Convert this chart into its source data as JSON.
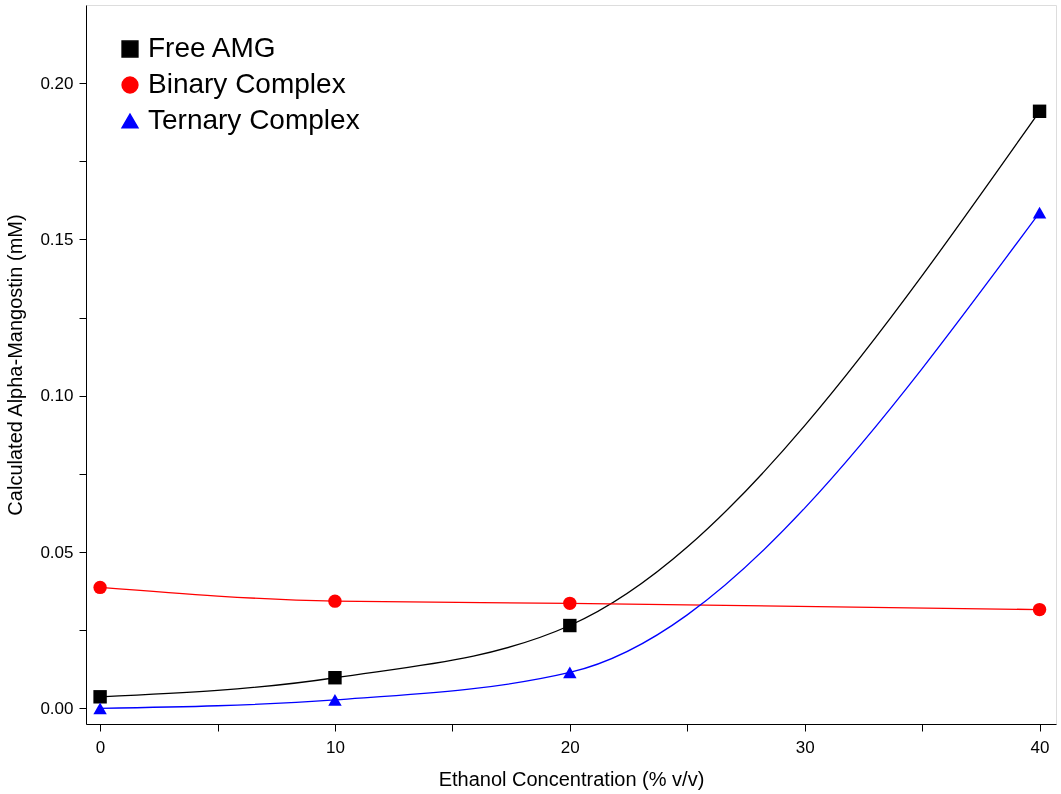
{
  "chart_data": {
    "type": "line",
    "xlabel": "Ethanol Concentration (% v/v)",
    "ylabel": "Calculated Alpha-Mangostin (mM)",
    "x": [
      0,
      10,
      20,
      40
    ],
    "series": [
      {
        "name": "Free AMG",
        "color": "#000000",
        "marker": "square",
        "values": [
          0.0037,
          0.0098,
          0.0265,
          0.191
        ]
      },
      {
        "name": "Binary Complex",
        "color": "#ff0000",
        "marker": "circle",
        "values": [
          0.0387,
          0.0343,
          0.0336,
          0.0316
        ]
      },
      {
        "name": "Ternary Complex",
        "color": "#0000ff",
        "marker": "triangle",
        "values": [
          0.0,
          0.0027,
          0.0115,
          0.1586
        ]
      }
    ],
    "xlim": [
      -0.6,
      40.7
    ],
    "ylim": [
      -0.005,
      0.225
    ],
    "xticks": [
      0,
      {
        "value": 5,
        "label": null
      },
      10,
      {
        "value": 15,
        "label": null
      },
      20,
      {
        "value": 25,
        "label": null
      },
      30,
      {
        "value": 35,
        "label": null
      },
      40
    ],
    "yticks": [
      {
        "value": 0,
        "label": "0.00"
      },
      {
        "value": 0.025,
        "label": null
      },
      {
        "value": 0.05,
        "label": "0.05"
      },
      {
        "value": 0.075,
        "label": null
      },
      {
        "value": 0.1,
        "label": "0.10"
      },
      {
        "value": 0.125,
        "label": null
      },
      {
        "value": 0.15,
        "label": "0.15"
      },
      {
        "value": 0.175,
        "label": null
      },
      {
        "value": 0.2,
        "label": "0.20"
      }
    ],
    "legend": "top left",
    "grid": false,
    "line_style": "solid"
  }
}
